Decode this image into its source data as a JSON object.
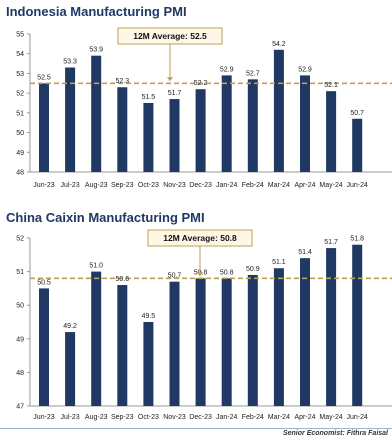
{
  "colors": {
    "bar": "#1f3864",
    "average_line": "#b8a15a",
    "title": "#1f3864",
    "average_box_border": "#b8a15a",
    "average_box_fill": "#fff7e6"
  },
  "chart_data": [
    {
      "type": "bar",
      "title": "Indonesia Manufacturing PMI",
      "categories": [
        "Jun-23",
        "Jul-23",
        "Aug-23",
        "Sep-23",
        "Oct-23",
        "Nov-23",
        "Dec-23",
        "Jan-24",
        "Feb-24",
        "Mar-24",
        "Apr-24",
        "May-24",
        "Jun-24"
      ],
      "values": [
        52.5,
        53.3,
        53.9,
        52.3,
        51.5,
        51.7,
        52.2,
        52.9,
        52.7,
        54.2,
        52.9,
        52.1,
        50.7
      ],
      "value_labels": [
        "52.5",
        "53.3",
        "53.9",
        "52.3",
        "51.5",
        "51.7",
        "52.2",
        "52.9",
        "52.7",
        "54.2",
        "52.9",
        "52.1",
        "50.7"
      ],
      "ylim": [
        48,
        55
      ],
      "yticks": [
        48,
        49,
        50,
        51,
        52,
        53,
        54,
        55
      ],
      "average": 52.5,
      "average_label": "12M Average: 52.5",
      "grid": false
    },
    {
      "type": "bar",
      "title": "China Caixin Manufacturing PMI",
      "categories": [
        "Jun-23",
        "Jul-23",
        "Aug-23",
        "Sep-23",
        "Oct-23",
        "Nov-23",
        "Dec-23",
        "Jan-24",
        "Feb-24",
        "Mar-24",
        "Apr-24",
        "May-24",
        "Jun-24"
      ],
      "values": [
        50.5,
        49.2,
        51.0,
        50.6,
        49.5,
        50.7,
        50.8,
        50.8,
        50.9,
        51.1,
        51.4,
        51.7,
        51.8
      ],
      "value_labels": [
        "50.5",
        "49.2",
        "51.0",
        "50.6",
        "49.5",
        "50.7",
        "50.8",
        "50.8",
        "50.9",
        "51.1",
        "51.4",
        "51.7",
        "51.8"
      ],
      "ylim": [
        47,
        52
      ],
      "yticks": [
        47,
        48,
        49,
        50,
        51,
        52
      ],
      "average": 50.8,
      "average_label": "12M Average: 50.8",
      "grid": false
    }
  ],
  "footer": {
    "credit": "Senior Economist: Fithra Faisal"
  }
}
